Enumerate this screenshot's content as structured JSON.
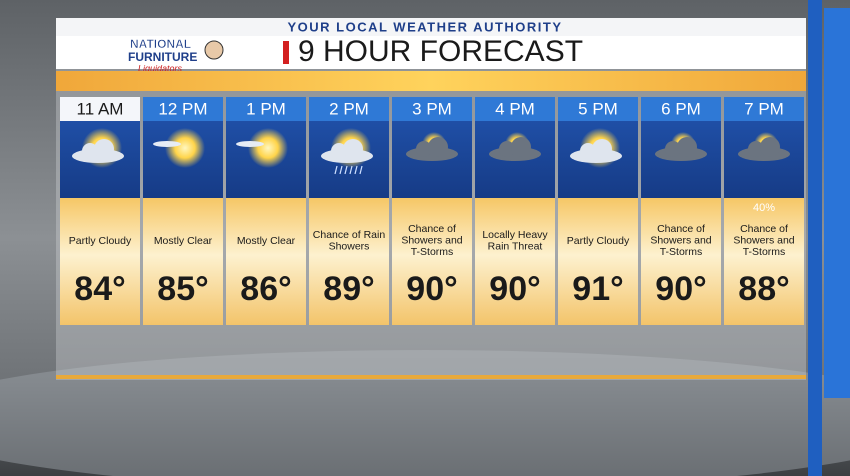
{
  "header": {
    "tagline": "YOUR LOCAL WEATHER AUTHORITY",
    "title": "9 HOUR FORECAST"
  },
  "sponsor": {
    "line1": "NATIONAL",
    "line2": "FURNITURE",
    "line3": "Liquidators"
  },
  "forecast": [
    {
      "time": "11 AM",
      "condition": "Partly Cloudy",
      "temp": "84°"
    },
    {
      "time": "12 PM",
      "condition": "Mostly Clear",
      "temp": "85°"
    },
    {
      "time": "1 PM",
      "condition": "Mostly Clear",
      "temp": "86°"
    },
    {
      "time": "2 PM",
      "condition": "Chance of Rain Showers",
      "temp": "89°"
    },
    {
      "time": "3 PM",
      "condition": "Chance of Showers and T-Storms",
      "temp": "90°"
    },
    {
      "time": "4 PM",
      "condition": "Locally Heavy Rain Threat",
      "temp": "90°"
    },
    {
      "time": "5 PM",
      "condition": "Partly Cloudy",
      "temp": "91°"
    },
    {
      "time": "6 PM",
      "condition": "Chance of Showers and T-Storms",
      "temp": "90°"
    },
    {
      "time": "7 PM",
      "condition": "Chance of Showers and T-Storms",
      "temp": "88°",
      "precip": "40%"
    }
  ]
}
